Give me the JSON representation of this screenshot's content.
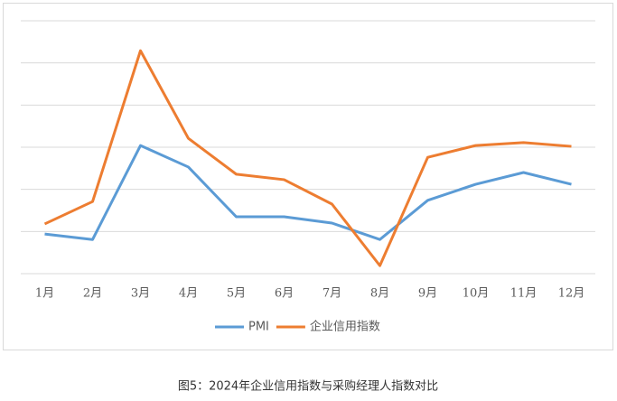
{
  "chart_data": {
    "type": "line",
    "categories": [
      "1月",
      "2月",
      "3月",
      "4月",
      "5月",
      "6月",
      "7月",
      "8月",
      "9月",
      "10月",
      "11月",
      "12月"
    ],
    "series": [
      {
        "name": "PMI",
        "color": "#5b9bd5",
        "values": [
          0.94,
          0.81,
          3.04,
          2.53,
          1.35,
          1.35,
          1.2,
          0.81,
          1.74,
          2.12,
          2.4,
          2.12
        ]
      },
      {
        "name": "企业信用指数",
        "color": "#ed7d31",
        "values": [
          1.18,
          1.71,
          5.29,
          3.21,
          2.36,
          2.23,
          1.65,
          0.19,
          2.76,
          3.04,
          3.11,
          3.02
        ]
      }
    ],
    "ylim": [
      0,
      6
    ],
    "yticks": [
      0,
      1,
      2,
      3,
      4,
      5,
      6
    ],
    "grid": true,
    "legend": "bottom",
    "caption": "图5：2024年企业信用指数与采购经理人指数对比"
  }
}
